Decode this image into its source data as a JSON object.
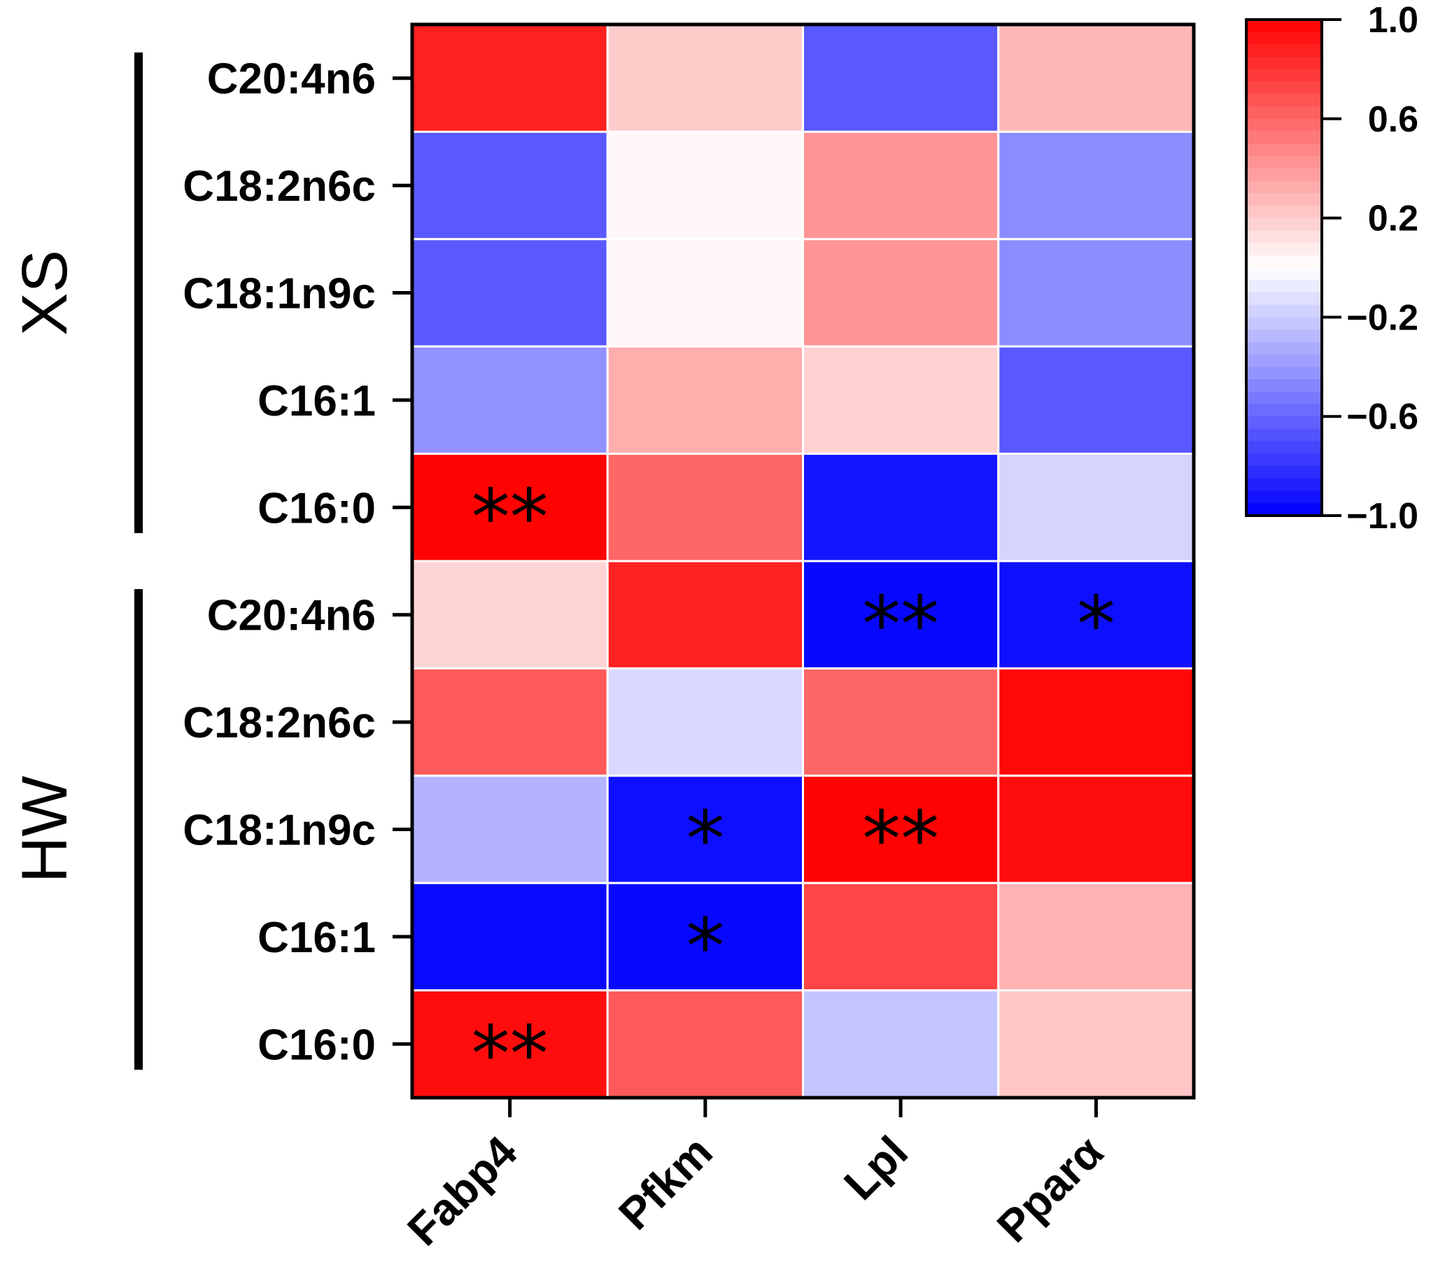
{
  "chart_data": {
    "type": "heatmap",
    "columns": [
      "Fabp4",
      "Pfkm",
      "Lpl",
      "Pparα"
    ],
    "groups": [
      {
        "name": "XS",
        "rows": [
          "C20:4n6",
          "C18:2n6c",
          "C18:1n9c",
          "C16:1",
          "C16:0"
        ],
        "values": [
          [
            0.87,
            0.2,
            -0.65,
            0.28
          ],
          [
            -0.65,
            0.03,
            0.42,
            -0.45
          ],
          [
            -0.65,
            0.03,
            0.42,
            -0.45
          ],
          [
            -0.43,
            0.32,
            0.18,
            -0.65
          ],
          [
            0.99,
            0.6,
            -0.92,
            -0.17
          ]
        ],
        "significance": [
          [
            "",
            "",
            "",
            ""
          ],
          [
            "",
            "",
            "",
            ""
          ],
          [
            "",
            "",
            "",
            ""
          ],
          [
            "",
            "",
            "",
            ""
          ],
          [
            "**",
            "",
            "",
            ""
          ]
        ]
      },
      {
        "name": "HW",
        "rows": [
          "C20:4n6",
          "C18:2n6c",
          "C18:1n9c",
          "C16:1",
          "C16:0"
        ],
        "values": [
          [
            0.17,
            0.87,
            -0.97,
            -0.94
          ],
          [
            0.65,
            -0.15,
            0.6,
            0.97
          ],
          [
            -0.3,
            -0.94,
            0.99,
            0.95
          ],
          [
            -0.96,
            -0.97,
            0.73,
            0.3
          ],
          [
            0.95,
            0.65,
            -0.23,
            0.22
          ]
        ],
        "significance": [
          [
            "",
            "",
            "**",
            "*"
          ],
          [
            "",
            "",
            "",
            ""
          ],
          [
            "",
            "*",
            "**",
            ""
          ],
          [
            "",
            "*",
            "",
            ""
          ],
          [
            "**",
            "",
            "",
            ""
          ]
        ]
      }
    ],
    "colorbar": {
      "min": -1.0,
      "max": 1.0,
      "ticks": [
        "1.0",
        "0.6",
        "0.2",
        "−0.2",
        "−0.6",
        "−1.0"
      ],
      "low_color": "#0000ff",
      "mid_color": "#ffffff",
      "high_color": "#ff0000"
    }
  }
}
